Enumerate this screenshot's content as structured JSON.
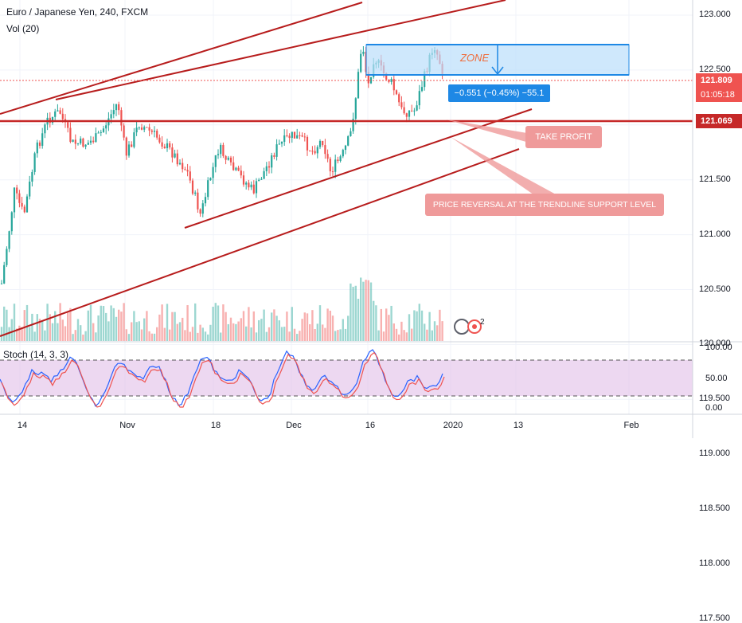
{
  "header": {
    "symbol_line": "Euro / Japanese Yen, 240, FXCM",
    "volume_line": "Vol (20)",
    "stoch_line": "Stoch (14, 3, 3)"
  },
  "price_axis": {
    "ticks": [
      "123.000",
      "122.500",
      "122.000",
      "121.500",
      "121.000",
      "120.500",
      "120.000",
      "119.500",
      "119.000",
      "118.500",
      "118.000",
      "117.500"
    ],
    "current_price": "121.809",
    "countdown": "01:05:18",
    "line_price": "121.069"
  },
  "stoch_axis": {
    "ticks": [
      "100.00",
      "50.00",
      "0.00"
    ]
  },
  "time_axis": {
    "ticks": [
      "14",
      "Nov",
      "18",
      "Dec",
      "16",
      "2020",
      "13",
      "Feb"
    ]
  },
  "annotations": {
    "zone_label": "ZONE",
    "measure_label": "−0.551 (−0.45%) −55.1",
    "take_profit": "TAKE PROFIT",
    "reversal_note": "PRICE REVERSAL AT THE TRENDLINE SUPPORT LEVEL",
    "alert_badge_count": "2"
  },
  "colors": {
    "up": "#26a69a",
    "down": "#ef5350",
    "trendline": "#b71c1c",
    "zone_fill": "#bbdefb",
    "zone_stroke": "#1e88e5",
    "current_price_bg": "#ef5350",
    "line_price_bg": "#c62828",
    "note_bg": "#ef9a9a",
    "stoch_fill": "#e1bee7"
  }
}
